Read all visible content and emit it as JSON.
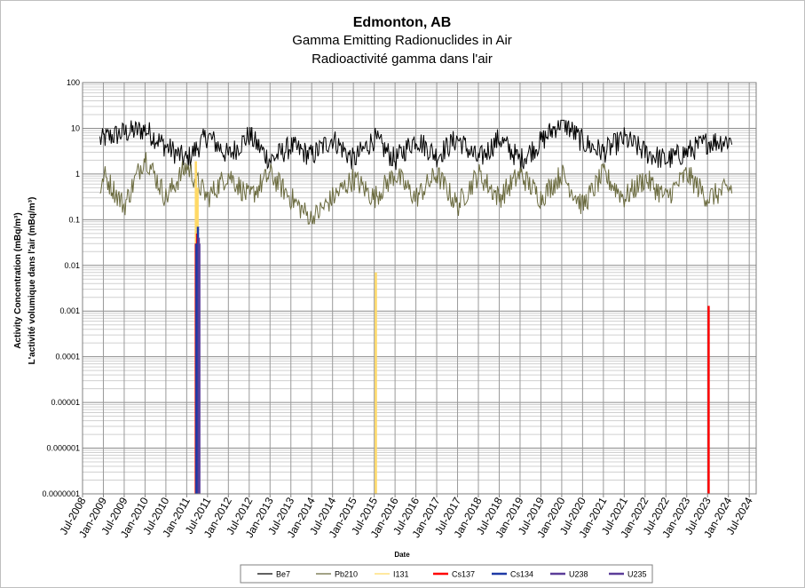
{
  "chart_data": {
    "type": "line",
    "title": "Edmonton, AB",
    "subtitle_en": "Gamma Emitting Radionuclides in Air",
    "subtitle_fr": "Radioactivité gamma dans l'air",
    "xlabel": "Date",
    "ylabel_en": "Activity Concentration  (mBq/m³)",
    "ylabel_fr": "L'activité volumique dans l'air (mBq/m³)",
    "y_scale": "log",
    "ylim": [
      1e-07,
      100
    ],
    "xlim": [
      "2008-07",
      "2024-09"
    ],
    "yticks": [
      "100",
      "10",
      "1",
      "0.1",
      "0.01",
      "0.001",
      "0.0001",
      "0.00001",
      "0.000001",
      "0.0000001"
    ],
    "xticks": [
      "Jul-2008",
      "Jan-2009",
      "Jul-2009",
      "Jan-2010",
      "Jul-2010",
      "Jan-2011",
      "Jul-2011",
      "Jan-2012",
      "Jul-2012",
      "Jan-2013",
      "Jul-2013",
      "Jan-2014",
      "Jul-2014",
      "Jan-2015",
      "Jul-2015",
      "Jan-2016",
      "Jul-2016",
      "Jan-2017",
      "Jul-2017",
      "Jan-2018",
      "Jul-2018",
      "Jan-2019",
      "Jul-2019",
      "Jan-2020",
      "Jul-2020",
      "Jan-2021",
      "Jul-2021",
      "Jan-2022",
      "Jul-2022",
      "Jan-2023",
      "Jul-2023",
      "Jan-2024",
      "Jul-2024"
    ],
    "grid": true,
    "legend_position": "bottom",
    "series": [
      {
        "name": "Be7",
        "color": "#000000",
        "date_range": [
          "2008-12",
          "2024-02"
        ],
        "typical": 3.5,
        "range": [
          1.0,
          15.0
        ],
        "points": [
          [
            "2009-01",
            6.0
          ],
          [
            "2009-07",
            8.0
          ],
          [
            "2010-01",
            9.5
          ],
          [
            "2010-07",
            4.0
          ],
          [
            "2011-01",
            2.0
          ],
          [
            "2011-07",
            7.0
          ],
          [
            "2012-01",
            2.5
          ],
          [
            "2012-07",
            7.0
          ],
          [
            "2013-01",
            2.0
          ],
          [
            "2013-07",
            4.0
          ],
          [
            "2014-01",
            2.5
          ],
          [
            "2014-07",
            6.0
          ],
          [
            "2015-01",
            2.0
          ],
          [
            "2015-07",
            6.0
          ],
          [
            "2016-01",
            2.0
          ],
          [
            "2016-07",
            6.0
          ],
          [
            "2017-01",
            2.5
          ],
          [
            "2017-07",
            6.0
          ],
          [
            "2018-01",
            2.0
          ],
          [
            "2018-07",
            6.0
          ],
          [
            "2019-01",
            2.0
          ],
          [
            "2019-07",
            5.0
          ],
          [
            "2020-01",
            15.0
          ],
          [
            "2020-07",
            5.0
          ],
          [
            "2021-01",
            3.0
          ],
          [
            "2021-07",
            6.0
          ],
          [
            "2022-01",
            3.0
          ],
          [
            "2022-07",
            2.0
          ],
          [
            "2023-01",
            3.0
          ],
          [
            "2023-07",
            5.0
          ],
          [
            "2024-02",
            5.5
          ]
        ]
      },
      {
        "name": "Pb210",
        "color": "#6b6b3f",
        "date_range": [
          "2008-12",
          "2024-02"
        ],
        "typical": 0.45,
        "range": [
          0.08,
          3.0
        ],
        "points": [
          [
            "2009-01",
            1.0
          ],
          [
            "2009-07",
            0.2
          ],
          [
            "2010-01",
            2.5
          ],
          [
            "2010-07",
            0.3
          ],
          [
            "2011-01",
            1.5
          ],
          [
            "2011-07",
            0.3
          ],
          [
            "2012-01",
            1.0
          ],
          [
            "2012-07",
            0.3
          ],
          [
            "2013-01",
            1.0
          ],
          [
            "2013-07",
            0.3
          ],
          [
            "2014-01",
            0.1
          ],
          [
            "2014-07",
            0.3
          ],
          [
            "2015-01",
            0.8
          ],
          [
            "2015-07",
            0.3
          ],
          [
            "2016-01",
            1.0
          ],
          [
            "2016-07",
            0.3
          ],
          [
            "2017-01",
            1.0
          ],
          [
            "2017-07",
            0.2
          ],
          [
            "2018-01",
            1.0
          ],
          [
            "2018-07",
            0.3
          ],
          [
            "2019-01",
            1.0
          ],
          [
            "2019-07",
            0.3
          ],
          [
            "2020-01",
            1.0
          ],
          [
            "2020-07",
            0.2
          ],
          [
            "2021-01",
            1.0
          ],
          [
            "2021-07",
            0.3
          ],
          [
            "2022-01",
            0.8
          ],
          [
            "2022-07",
            0.3
          ],
          [
            "2023-01",
            1.0
          ],
          [
            "2023-07",
            0.3
          ],
          [
            "2024-02",
            0.5
          ]
        ]
      },
      {
        "name": "I131",
        "color": "#ffd966",
        "spikes": [
          [
            "2011-03-20",
            1.9
          ],
          [
            "2011-04-05",
            0.5
          ],
          [
            "2015-07-15",
            0.007
          ]
        ]
      },
      {
        "name": "Cs137",
        "color": "#ff0000",
        "spikes": [
          [
            "2011-03-20",
            0.03
          ],
          [
            "2011-04-01",
            0.05
          ],
          [
            "2023-07-10",
            0.0013
          ]
        ]
      },
      {
        "name": "Cs134",
        "color": "#1f3aa6",
        "spikes": [
          [
            "2011-03-25",
            0.03
          ],
          [
            "2011-04-08",
            0.07
          ]
        ]
      },
      {
        "name": "U238",
        "color": "#5b3d99",
        "spikes": [
          [
            "2011-04-15",
            0.04
          ]
        ]
      },
      {
        "name": "U235",
        "color": "#5b3d99",
        "spikes": [
          [
            "2011-04-20",
            0.03
          ]
        ]
      }
    ]
  }
}
